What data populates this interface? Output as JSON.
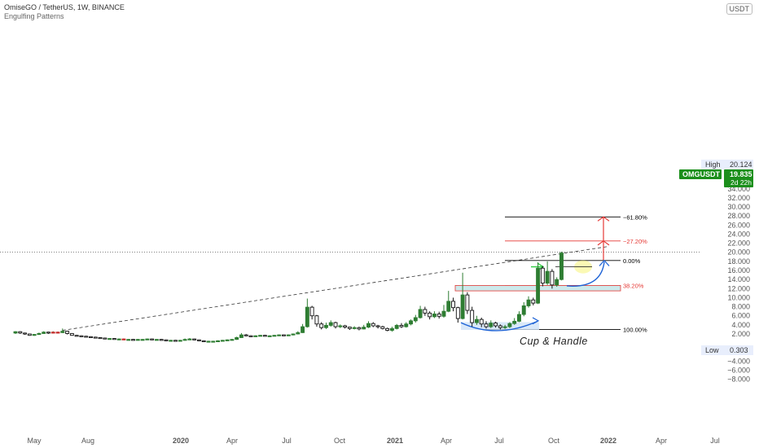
{
  "header": {
    "symbol_line": "OmiseGO / TetherUS, 1W, BINANCE",
    "indicator_line": "Engulfing Patterns"
  },
  "unit_badge": "USDT",
  "price_badges": {
    "high_label": "High",
    "high_value": "20.124",
    "ticker": "OMGUSDT",
    "last": "19.835",
    "countdown": "2d 22h",
    "low_label": "Low",
    "low_value": "0.303"
  },
  "annotations": {
    "pattern_label": "Cup & Handle",
    "fib_levels": [
      {
        "label": "61.80%",
        "price": 27.8,
        "color": "#000000"
      },
      {
        "label": "27.20%",
        "price": 22.5,
        "color": "#e53935"
      },
      {
        "label": "0.00%",
        "price": 18.2,
        "color": "#000000"
      },
      {
        "label": "38.20%",
        "price": 12.7,
        "color": "#e53935"
      },
      {
        "label": "100.00%",
        "price": 3.0,
        "color": "#000000"
      }
    ]
  },
  "colors": {
    "up": "#2e7d32",
    "down": "#111111",
    "accent_red": "#e53935",
    "accent_blue": "#1e63d6",
    "accent_green": "#2ecc40",
    "badge_green": "#1b8f1b"
  },
  "chart_data": {
    "type": "candlestick",
    "title": "OmiseGO / TetherUS, 1W, BINANCE",
    "ylim": [
      -9,
      38
    ],
    "y_ticks": [
      "36.000",
      "34.000",
      "32.000",
      "30.000",
      "28.000",
      "26.000",
      "24.000",
      "22.000",
      "20.000",
      "18.000",
      "16.000",
      "14.000",
      "12.000",
      "10.000",
      "8.000",
      "6.000",
      "4.000",
      "2.000",
      "−2.000",
      "−4.000",
      "−6.000",
      "−8.000"
    ],
    "x_tick_labels": [
      "May",
      "Aug",
      "2020",
      "Apr",
      "Jul",
      "Oct",
      "2021",
      "Apr",
      "Jul",
      "Oct",
      "2022",
      "Apr",
      "Jul"
    ],
    "trendline": {
      "from": [
        0,
        2.8
      ],
      "to": [
        126,
        21.3
      ]
    },
    "candles": [
      [
        2.2,
        2.5,
        2.6,
        2.0
      ],
      [
        2.5,
        2.2,
        2.6,
        2.0
      ],
      [
        2.2,
        2.0,
        2.3,
        1.8
      ],
      [
        2.0,
        1.7,
        2.1,
        1.6
      ],
      [
        1.7,
        1.9,
        2.0,
        1.6
      ],
      [
        1.9,
        2.1,
        2.3,
        1.8
      ],
      [
        2.1,
        2.4,
        2.6,
        2.0
      ],
      [
        2.4,
        2.2,
        2.5,
        2.0
      ],
      [
        2.2,
        2.4,
        2.6,
        2.1
      ],
      [
        2.4,
        2.3,
        2.5,
        2.1
      ],
      [
        2.3,
        2.6,
        3.2,
        2.2
      ],
      [
        2.6,
        2.1,
        2.7,
        1.9
      ],
      [
        2.1,
        1.7,
        2.2,
        1.6
      ],
      [
        1.7,
        1.6,
        1.8,
        1.5
      ],
      [
        1.6,
        1.5,
        1.7,
        1.4
      ],
      [
        1.5,
        1.4,
        1.6,
        1.3
      ],
      [
        1.4,
        1.3,
        1.5,
        1.2
      ],
      [
        1.3,
        1.2,
        1.4,
        1.1
      ],
      [
        1.2,
        1.1,
        1.3,
        1.0
      ],
      [
        1.1,
        1.0,
        1.2,
        0.9
      ],
      [
        1.0,
        1.0,
        1.1,
        0.9
      ],
      [
        1.0,
        0.9,
        1.1,
        0.8
      ],
      [
        0.9,
        0.9,
        1.0,
        0.8
      ],
      [
        0.9,
        0.8,
        1.0,
        0.8
      ],
      [
        0.8,
        0.8,
        0.9,
        0.7
      ],
      [
        0.8,
        0.7,
        0.9,
        0.7
      ],
      [
        0.7,
        0.8,
        0.9,
        0.7
      ],
      [
        0.8,
        0.8,
        0.9,
        0.7
      ],
      [
        0.8,
        0.9,
        1.0,
        0.8
      ],
      [
        0.9,
        0.8,
        1.0,
        0.8
      ],
      [
        0.8,
        0.8,
        0.9,
        0.7
      ],
      [
        0.8,
        0.7,
        0.9,
        0.6
      ],
      [
        0.7,
        0.6,
        0.8,
        0.5
      ],
      [
        0.6,
        0.6,
        0.7,
        0.5
      ],
      [
        0.6,
        0.5,
        0.7,
        0.4
      ],
      [
        0.5,
        0.6,
        0.7,
        0.4
      ],
      [
        0.6,
        0.8,
        1.0,
        0.6
      ],
      [
        0.8,
        0.9,
        1.1,
        0.7
      ],
      [
        0.9,
        0.7,
        1.0,
        0.6
      ],
      [
        0.7,
        0.5,
        0.8,
        0.4
      ],
      [
        0.5,
        0.3,
        0.6,
        0.3
      ],
      [
        0.3,
        0.4,
        0.5,
        0.3
      ],
      [
        0.4,
        0.4,
        0.5,
        0.3
      ],
      [
        0.4,
        0.5,
        0.6,
        0.4
      ],
      [
        0.5,
        0.6,
        0.7,
        0.5
      ],
      [
        0.6,
        0.7,
        0.8,
        0.5
      ],
      [
        0.7,
        0.8,
        0.9,
        0.6
      ],
      [
        0.8,
        1.2,
        1.4,
        0.7
      ],
      [
        1.2,
        1.8,
        2.2,
        1.1
      ],
      [
        1.8,
        1.6,
        2.0,
        1.5
      ],
      [
        1.6,
        1.5,
        1.7,
        1.4
      ],
      [
        1.5,
        1.6,
        1.7,
        1.4
      ],
      [
        1.6,
        1.7,
        1.8,
        1.5
      ],
      [
        1.7,
        1.6,
        1.8,
        1.5
      ],
      [
        1.6,
        1.6,
        1.7,
        1.5
      ],
      [
        1.6,
        1.7,
        1.8,
        1.5
      ],
      [
        1.7,
        1.8,
        1.9,
        1.6
      ],
      [
        1.8,
        1.7,
        1.9,
        1.6
      ],
      [
        1.7,
        1.8,
        1.9,
        1.6
      ],
      [
        1.8,
        2.0,
        2.1,
        1.7
      ],
      [
        2.0,
        2.3,
        2.6,
        1.9
      ],
      [
        2.3,
        3.6,
        4.2,
        2.2
      ],
      [
        3.6,
        7.9,
        9.8,
        3.4
      ],
      [
        7.9,
        6.0,
        8.2,
        5.2
      ],
      [
        6.0,
        4.2,
        6.2,
        3.6
      ],
      [
        4.2,
        3.4,
        4.6,
        3.0
      ],
      [
        3.4,
        3.9,
        4.5,
        3.1
      ],
      [
        3.9,
        4.5,
        5.0,
        3.6
      ],
      [
        4.5,
        3.6,
        4.7,
        3.2
      ],
      [
        3.6,
        3.8,
        4.1,
        3.3
      ],
      [
        3.8,
        3.5,
        4.0,
        3.2
      ],
      [
        3.5,
        3.2,
        3.6,
        2.9
      ],
      [
        3.2,
        3.4,
        3.7,
        3.0
      ],
      [
        3.4,
        3.1,
        3.6,
        2.8
      ],
      [
        3.1,
        3.5,
        4.0,
        3.0
      ],
      [
        3.5,
        4.3,
        4.8,
        3.3
      ],
      [
        4.3,
        3.8,
        4.6,
        3.5
      ],
      [
        3.8,
        3.6,
        4.0,
        3.2
      ],
      [
        3.6,
        3.2,
        3.8,
        3.0
      ],
      [
        3.2,
        2.8,
        3.4,
        2.6
      ],
      [
        2.8,
        3.2,
        3.6,
        2.5
      ],
      [
        3.2,
        3.9,
        4.2,
        3.0
      ],
      [
        3.9,
        3.6,
        4.4,
        3.3
      ],
      [
        3.6,
        4.2,
        4.6,
        3.4
      ],
      [
        4.2,
        4.9,
        5.2,
        3.9
      ],
      [
        4.9,
        5.6,
        6.2,
        4.5
      ],
      [
        5.6,
        7.4,
        8.2,
        5.4
      ],
      [
        7.4,
        6.6,
        8.0,
        6.0
      ],
      [
        6.6,
        5.8,
        7.0,
        5.2
      ],
      [
        5.8,
        6.4,
        7.0,
        5.5
      ],
      [
        6.4,
        5.9,
        6.9,
        5.4
      ],
      [
        5.9,
        7.0,
        8.4,
        5.6
      ],
      [
        7.0,
        9.2,
        11.5,
        6.8
      ],
      [
        9.2,
        7.8,
        10.0,
        7.0
      ],
      [
        7.8,
        5.4,
        8.0,
        4.5
      ],
      [
        5.4,
        10.6,
        15.5,
        5.2
      ],
      [
        10.6,
        7.2,
        11.2,
        6.4
      ],
      [
        7.2,
        4.5,
        8.0,
        3.6
      ],
      [
        4.5,
        5.2,
        6.0,
        4.0
      ],
      [
        5.2,
        4.2,
        5.6,
        3.5
      ],
      [
        4.2,
        3.6,
        4.8,
        3.2
      ],
      [
        3.6,
        4.4,
        5.0,
        3.3
      ],
      [
        4.4,
        3.8,
        4.7,
        3.4
      ],
      [
        3.8,
        3.4,
        4.1,
        3.0
      ],
      [
        3.4,
        3.6,
        4.0,
        3.1
      ],
      [
        3.6,
        4.3,
        4.6,
        3.3
      ],
      [
        4.3,
        4.8,
        5.5,
        4.0
      ],
      [
        4.8,
        6.3,
        7.0,
        4.6
      ],
      [
        6.3,
        8.2,
        9.0,
        5.9
      ],
      [
        8.2,
        9.5,
        10.3,
        7.8
      ],
      [
        9.5,
        8.8,
        10.0,
        8.3
      ],
      [
        8.8,
        16.5,
        17.8,
        8.6
      ],
      [
        16.5,
        13.2,
        17.0,
        12.5
      ],
      [
        13.2,
        15.8,
        18.0,
        12.8
      ],
      [
        15.8,
        12.8,
        16.3,
        12.0
      ],
      [
        12.8,
        14.0,
        14.5,
        12.4
      ],
      [
        14.0,
        19.835,
        20.124,
        13.8
      ]
    ]
  }
}
